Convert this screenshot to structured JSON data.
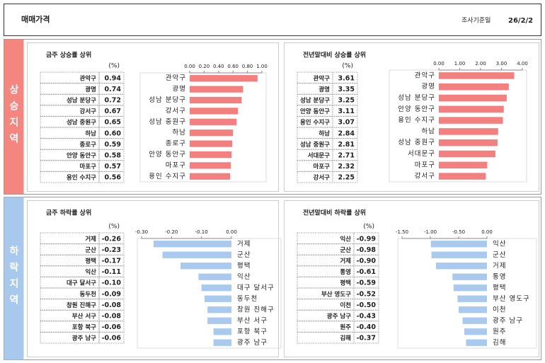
{
  "header": {
    "title": "매매가격",
    "date_label": "조사기준일",
    "date": "26/2/2"
  },
  "sections": [
    {
      "label": "상승지역"
    },
    {
      "label": "하락지역"
    }
  ],
  "chart_data": [
    {
      "type": "bar",
      "orientation": "horizontal",
      "title": "금주 상승률 상위",
      "unit": "(%)",
      "categories": [
        "관악구",
        "광명",
        "성남 분당구",
        "강서구",
        "성남 중원구",
        "하남",
        "종로구",
        "안양 동안구",
        "마포구",
        "용인 수지구"
      ],
      "values": [
        0.94,
        0.74,
        0.72,
        0.67,
        0.65,
        0.6,
        0.59,
        0.58,
        0.57,
        0.56
      ],
      "value_labels": [
        "0.94",
        "0.74",
        "0.72",
        "0.67",
        "0.65",
        "0.60",
        "0.59",
        "0.58",
        "0.57",
        "0.56"
      ],
      "color": "#f47f7f",
      "xlim": [
        0,
        1
      ],
      "xticks": [
        {
          "value": 0,
          "label": "0.00"
        },
        {
          "value": 0.2,
          "label": "0.20"
        },
        {
          "value": 0.4,
          "label": "0.40"
        },
        {
          "value": 0.6,
          "label": "0.60"
        },
        {
          "value": 0.8,
          "label": "0.80"
        },
        {
          "value": 1,
          "label": "1.00"
        }
      ]
    },
    {
      "type": "bar",
      "orientation": "horizontal",
      "title": "전년말대비 상승률 상위",
      "unit": "(%)",
      "categories": [
        "관악구",
        "광명",
        "성남 분당구",
        "안양 동안구",
        "용인 수지구",
        "하남",
        "성남 중원구",
        "서대문구",
        "마포구",
        "강서구"
      ],
      "values": [
        3.61,
        3.35,
        3.25,
        3.11,
        3.07,
        2.84,
        2.81,
        2.71,
        2.32,
        2.25
      ],
      "value_labels": [
        "3.61",
        "3.35",
        "3.25",
        "3.11",
        "3.07",
        "2.84",
        "2.81",
        "2.71",
        "2.32",
        "2.25"
      ],
      "color": "#f47f7f",
      "xlim": [
        0,
        4
      ],
      "xticks": [
        {
          "value": 0,
          "label": "0.00"
        },
        {
          "value": 1,
          "label": "1.00"
        },
        {
          "value": 2,
          "label": "2.00"
        },
        {
          "value": 3,
          "label": "3.00"
        },
        {
          "value": 4,
          "label": "4.00"
        }
      ]
    },
    {
      "type": "bar",
      "orientation": "horizontal",
      "title": "금주 하락률 상위",
      "unit": "(%)",
      "categories": [
        "거제",
        "군산",
        "평택",
        "익산",
        "대구 달서구",
        "동두천",
        "창원 진해구",
        "부산 서구",
        "포항 북구",
        "광주 남구"
      ],
      "values": [
        -0.26,
        -0.23,
        -0.17,
        -0.11,
        -0.1,
        -0.09,
        -0.08,
        -0.08,
        -0.06,
        -0.06
      ],
      "value_labels": [
        "-0.26",
        "-0.23",
        "-0.17",
        "-0.11",
        "-0.10",
        "-0.09",
        "-0.08",
        "-0.08",
        "-0.06",
        "-0.06"
      ],
      "color": "#a9c9ee",
      "xlim": [
        -0.3,
        0
      ],
      "xticks": [
        {
          "value": -0.3,
          "label": "-0.30"
        },
        {
          "value": -0.2,
          "label": "-0.20"
        },
        {
          "value": -0.1,
          "label": "-0.10"
        },
        {
          "value": 0,
          "label": "0.00"
        }
      ]
    },
    {
      "type": "bar",
      "orientation": "horizontal",
      "title": "전년말대비 하락률 상위",
      "unit": "(%)",
      "categories": [
        "익산",
        "군산",
        "거제",
        "통영",
        "평택",
        "부산 영도구",
        "이천",
        "광주 남구",
        "원주",
        "김해"
      ],
      "values": [
        -0.99,
        -0.98,
        -0.9,
        -0.61,
        -0.59,
        -0.52,
        -0.5,
        -0.43,
        -0.4,
        -0.37
      ],
      "value_labels": [
        "-0.99",
        "-0.98",
        "-0.90",
        "-0.61",
        "-0.59",
        "-0.52",
        "-0.50",
        "-0.43",
        "-0.40",
        "-0.37"
      ],
      "color": "#a9c9ee",
      "xlim": [
        -1.5,
        0
      ],
      "xticks": [
        {
          "value": -1.5,
          "label": "-1.50"
        },
        {
          "value": -1,
          "label": "-1.00"
        },
        {
          "value": -0.5,
          "label": "-0.50"
        },
        {
          "value": 0,
          "label": "0.00"
        }
      ]
    }
  ]
}
